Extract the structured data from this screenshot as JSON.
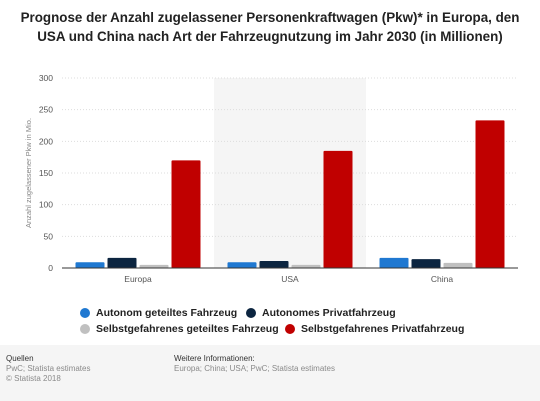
{
  "title": "Prognose der Anzahl zugelassener Personenkraftwagen (Pkw)* in Europa, den USA und China nach Art der Fahrzeugnutzung im Jahr 2030 (in Millionen)",
  "chart_data": {
    "type": "bar",
    "categories": [
      "Europa",
      "USA",
      "China"
    ],
    "ylabel": "Anzahl zugelassener Pkw in Mio.",
    "ylim": [
      0,
      300
    ],
    "yticks": [
      "0",
      "50",
      "100",
      "150",
      "200",
      "250",
      "300"
    ],
    "grid": true,
    "legend_position": "bottom",
    "series": [
      {
        "name": "Autonom geteiltes Fahrzeug",
        "color": "#1f78d1",
        "values": [
          9,
          9,
          16
        ]
      },
      {
        "name": "Autonomes Privatfahrzeug",
        "color": "#0c2540",
        "values": [
          16,
          11,
          14
        ]
      },
      {
        "name": "Selbstgefahrenes geteiltes Fahrzeug",
        "color": "#c0c0c0",
        "values": [
          5,
          5,
          8
        ]
      },
      {
        "name": "Selbstgefahrenes Privatfahrzeug",
        "color": "#c00000",
        "values": [
          170,
          185,
          233
        ]
      }
    ]
  },
  "footer": {
    "sources_heading": "Quellen",
    "sources_lines": [
      "PwC; Statista estimates",
      "© Statista 2018"
    ],
    "info_heading": "Weitere Informationen:",
    "info_text": "Europa; China; USA; PwC; Statista estimates"
  }
}
